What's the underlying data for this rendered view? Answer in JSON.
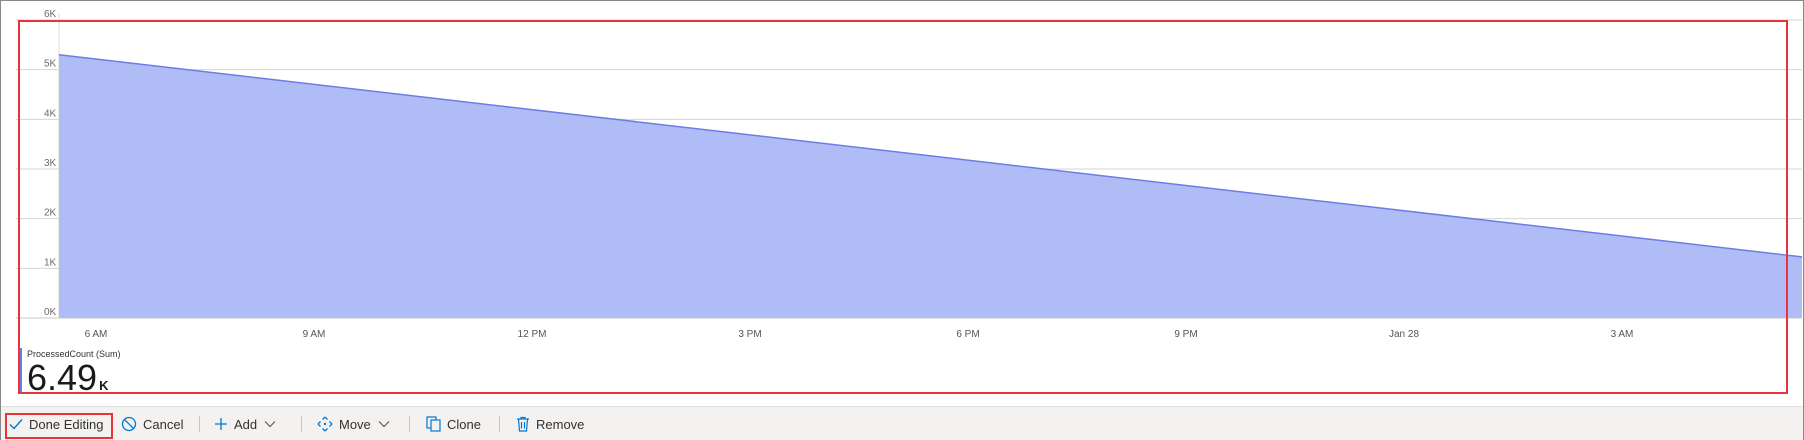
{
  "chart_data": {
    "type": "area",
    "x_tick_labels": [
      "6 AM",
      "9 AM",
      "12 PM",
      "3 PM",
      "6 PM",
      "9 PM",
      "Jan 28",
      "3 AM"
    ],
    "y_tick_labels": [
      "0K",
      "1K",
      "2K",
      "3K",
      "4K",
      "5K",
      "6K"
    ],
    "ylim": [
      0,
      6000
    ],
    "grid": true,
    "series": [
      {
        "color": "#6b7ee6",
        "fill": "#b0bcf5",
        "points": [
          {
            "x": "5:25 AM",
            "y": 5300
          },
          {
            "x": "5:20 AM (Jan 28)",
            "y": 1230
          }
        ]
      }
    ]
  },
  "summary": {
    "label": "ProcessedCount (Sum)",
    "value": "6.49",
    "unit": "K"
  },
  "toolbar": {
    "done_editing": "Done Editing",
    "cancel": "Cancel",
    "add": "Add",
    "move": "Move",
    "clone": "Clone",
    "remove": "Remove"
  },
  "colors": {
    "accent": "#0078d4",
    "highlight_outline": "#e8343c"
  }
}
